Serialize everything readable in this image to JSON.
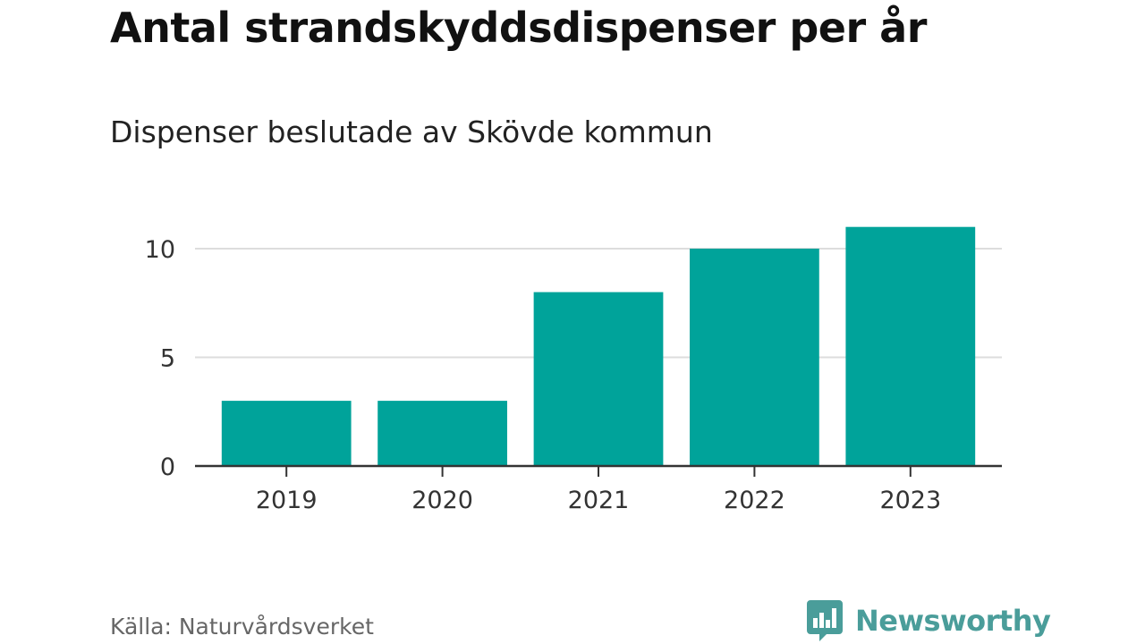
{
  "chart_data": {
    "type": "bar",
    "title": "Antal strandskyddsdispenser per år",
    "subtitle": "Dispenser beslutade av Skövde kommun",
    "categories": [
      "2019",
      "2020",
      "2021",
      "2022",
      "2023"
    ],
    "values": [
      3,
      3,
      8,
      10,
      11
    ],
    "yticks": [
      "0",
      "5",
      "10"
    ],
    "ylim": [
      0,
      11
    ],
    "xlabel": "",
    "ylabel": "",
    "grid": true,
    "colors": {
      "bar": "#00A39A",
      "grid": "#dddddd",
      "axis": "#333333"
    }
  },
  "footer": {
    "source": "Källa: Naturvårdsverket",
    "brand": "Newsworthy",
    "brand_icon": "bar-chart-speech-bubble-icon"
  }
}
